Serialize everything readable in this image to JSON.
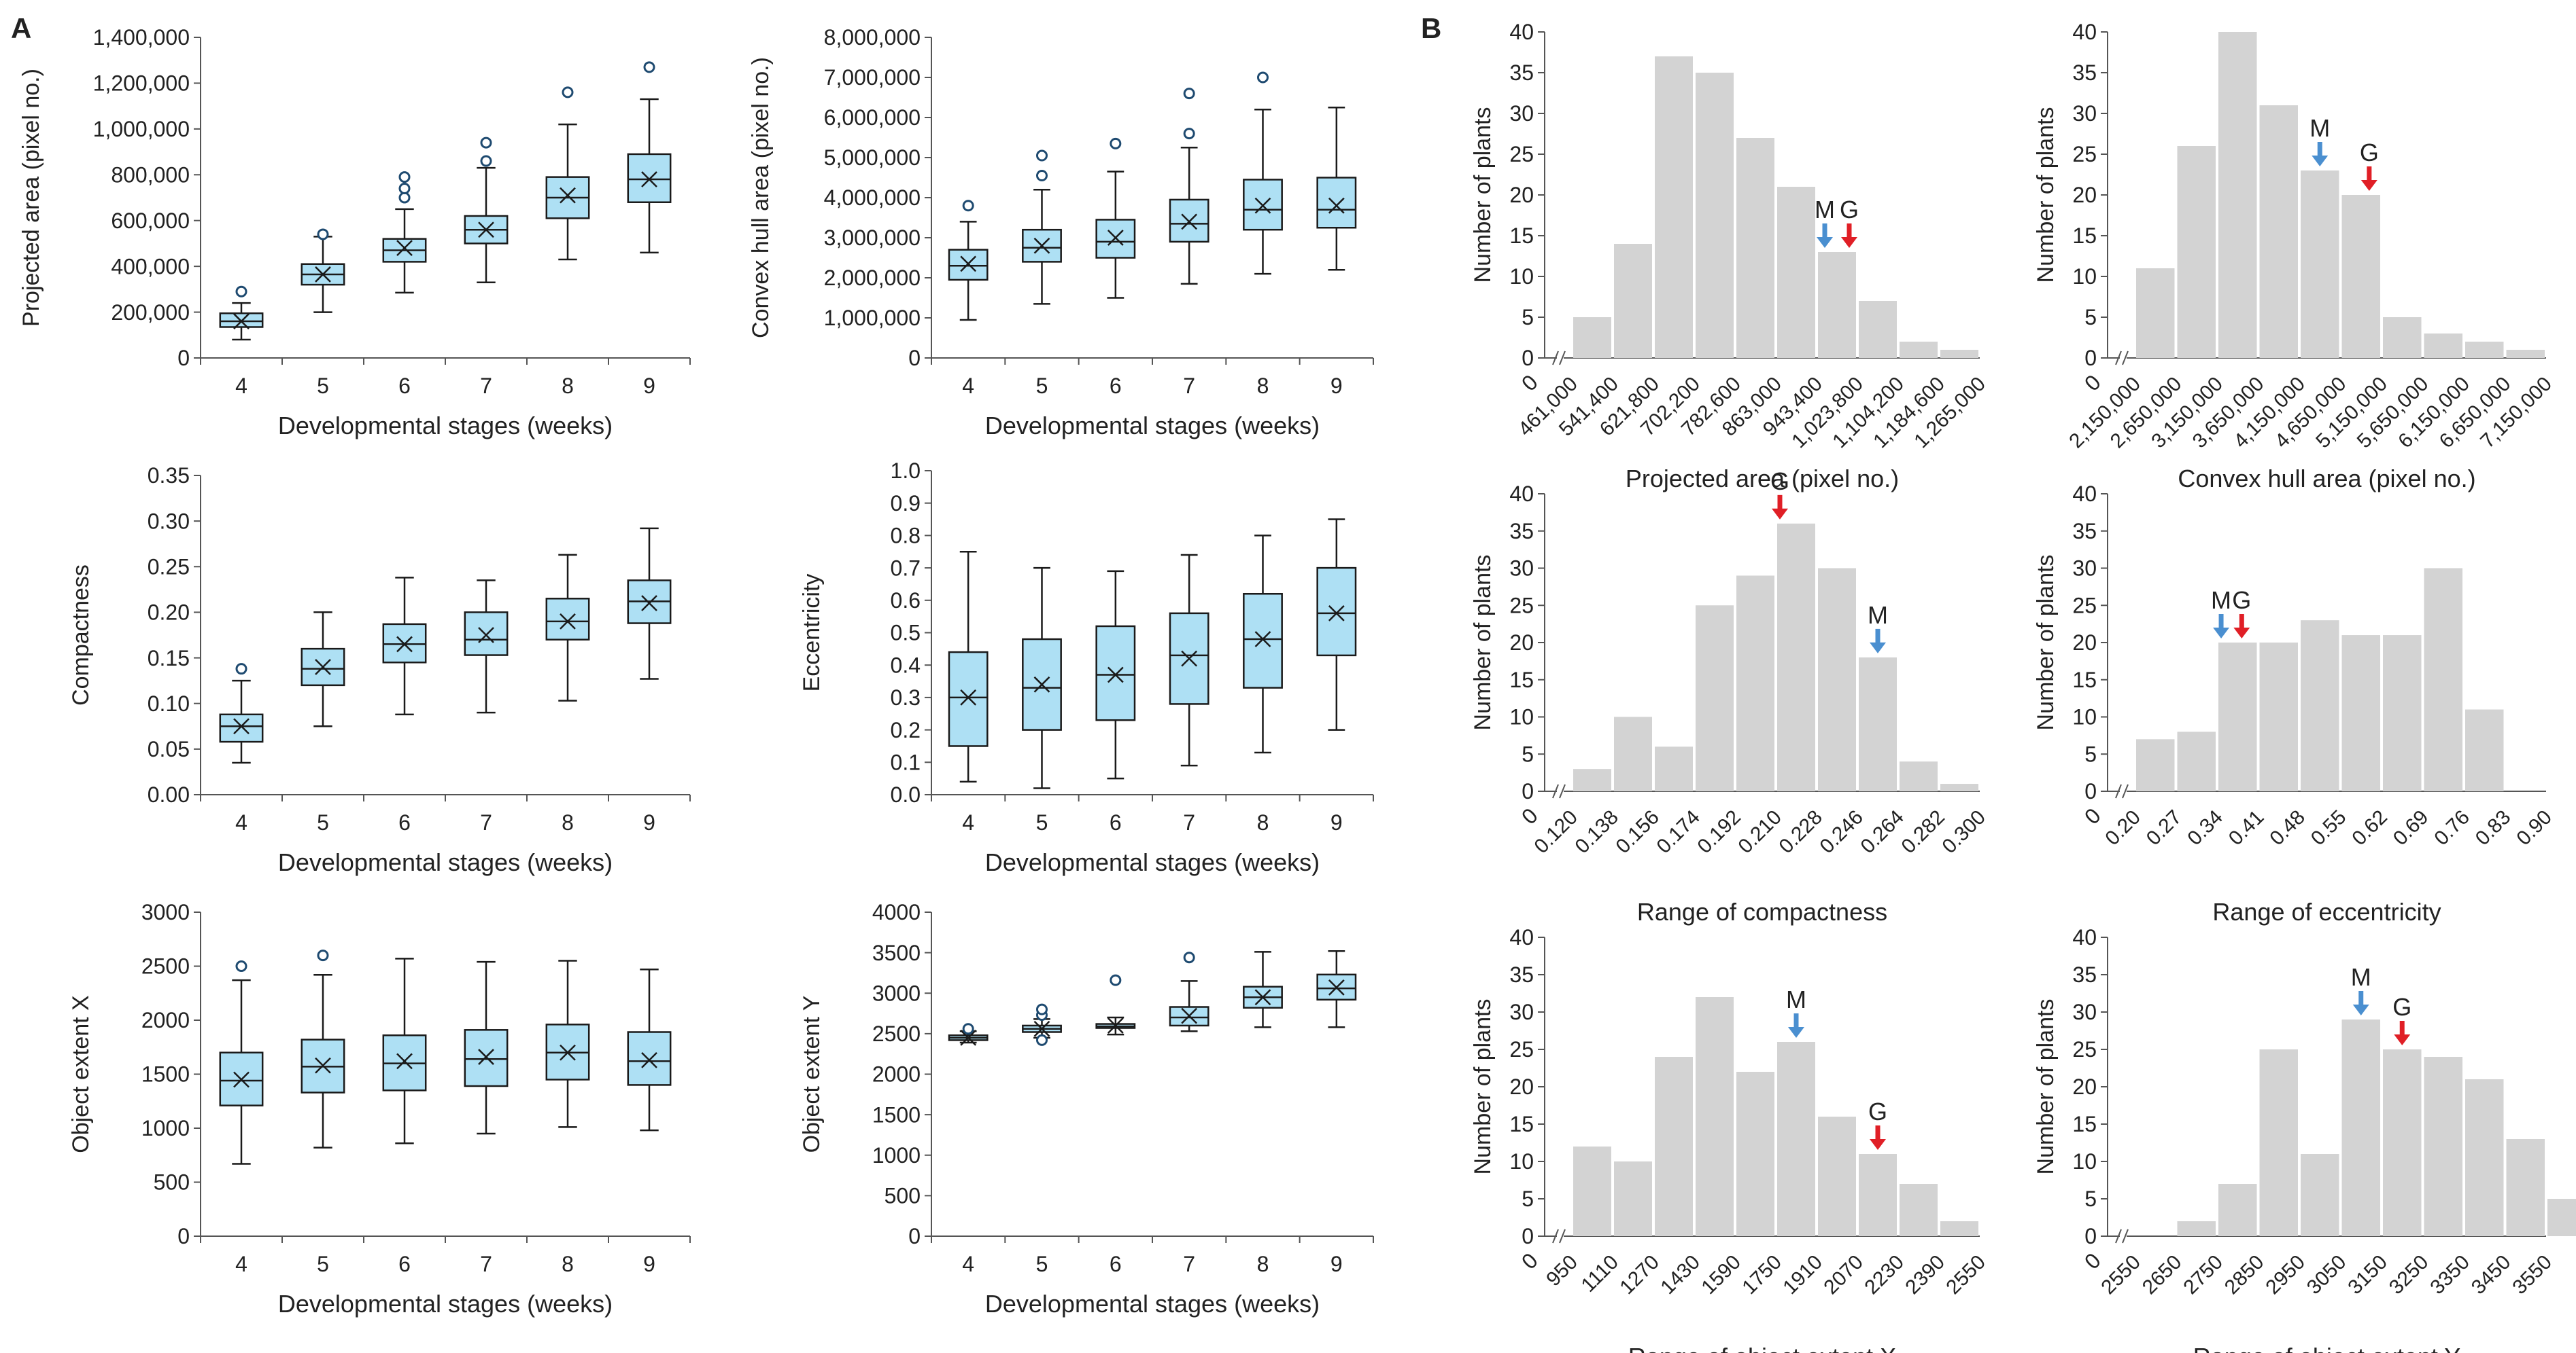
{
  "panel_labels": {
    "a": "A",
    "b": "B"
  },
  "chart_data": [
    {
      "id": "box-projected",
      "type": "box",
      "ylabel": "Projected area (pixel no.)",
      "xlabel": "Developmental stages (weeks)",
      "ylim": [
        0,
        1400000
      ],
      "ystep": 200000,
      "yfmt": "comma",
      "categories": [
        "4",
        "5",
        "6",
        "7",
        "8",
        "9"
      ],
      "boxes": [
        {
          "min": 80000,
          "q1": 135000,
          "median": 160000,
          "q3": 195000,
          "max": 240000,
          "mean": 160000,
          "outliers": [
            290000
          ]
        },
        {
          "min": 200000,
          "q1": 320000,
          "median": 365000,
          "q3": 410000,
          "max": 530000,
          "mean": 365000,
          "outliers": [
            540000
          ]
        },
        {
          "min": 285000,
          "q1": 420000,
          "median": 470000,
          "q3": 520000,
          "max": 650000,
          "mean": 480000,
          "outliers": [
            700000,
            740000,
            790000
          ]
        },
        {
          "min": 330000,
          "q1": 500000,
          "median": 560000,
          "q3": 620000,
          "max": 830000,
          "mean": 560000,
          "outliers": [
            860000,
            940000
          ]
        },
        {
          "min": 430000,
          "q1": 610000,
          "median": 700000,
          "q3": 790000,
          "max": 1020000,
          "mean": 710000,
          "outliers": [
            1160000
          ]
        },
        {
          "min": 460000,
          "q1": 680000,
          "median": 780000,
          "q3": 890000,
          "max": 1130000,
          "mean": 780000,
          "outliers": [
            1270000
          ]
        }
      ]
    },
    {
      "id": "box-convex",
      "type": "box",
      "ylabel": "Convex hull area (pixel no.)",
      "xlabel": "Developmental stages (weeks)",
      "ylim": [
        0,
        8000000
      ],
      "ystep": 1000000,
      "yfmt": "comma",
      "categories": [
        "4",
        "5",
        "6",
        "7",
        "8",
        "9"
      ],
      "boxes": [
        {
          "min": 950000,
          "q1": 1950000,
          "median": 2300000,
          "q3": 2700000,
          "max": 3400000,
          "mean": 2350000,
          "outliers": [
            3800000
          ]
        },
        {
          "min": 1350000,
          "q1": 2400000,
          "median": 2750000,
          "q3": 3200000,
          "max": 4200000,
          "mean": 2800000,
          "outliers": [
            4550000,
            5050000
          ]
        },
        {
          "min": 1500000,
          "q1": 2500000,
          "median": 2900000,
          "q3": 3450000,
          "max": 4650000,
          "mean": 3000000,
          "outliers": [
            5350000
          ]
        },
        {
          "min": 1850000,
          "q1": 2900000,
          "median": 3350000,
          "q3": 3950000,
          "max": 5250000,
          "mean": 3400000,
          "outliers": [
            5600000,
            6600000
          ]
        },
        {
          "min": 2100000,
          "q1": 3200000,
          "median": 3700000,
          "q3": 4450000,
          "max": 6200000,
          "mean": 3800000,
          "outliers": [
            7000000
          ]
        },
        {
          "min": 2200000,
          "q1": 3250000,
          "median": 3700000,
          "q3": 4500000,
          "max": 6250000,
          "mean": 3800000,
          "outliers": []
        }
      ]
    },
    {
      "id": "box-compact",
      "type": "box",
      "ylabel": "Compactness",
      "xlabel": "Developmental stages (weeks)",
      "ylim": [
        0,
        0.35
      ],
      "ystep": 0.05,
      "yfmt": "2",
      "categories": [
        "4",
        "5",
        "6",
        "7",
        "8",
        "9"
      ],
      "boxes": [
        {
          "min": 0.035,
          "q1": 0.058,
          "median": 0.075,
          "q3": 0.088,
          "max": 0.125,
          "mean": 0.075,
          "outliers": [
            0.138
          ]
        },
        {
          "min": 0.075,
          "q1": 0.12,
          "median": 0.138,
          "q3": 0.16,
          "max": 0.2,
          "mean": 0.14,
          "outliers": []
        },
        {
          "min": 0.088,
          "q1": 0.145,
          "median": 0.165,
          "q3": 0.187,
          "max": 0.238,
          "mean": 0.165,
          "outliers": []
        },
        {
          "min": 0.09,
          "q1": 0.153,
          "median": 0.17,
          "q3": 0.2,
          "max": 0.235,
          "mean": 0.175,
          "outliers": []
        },
        {
          "min": 0.103,
          "q1": 0.17,
          "median": 0.19,
          "q3": 0.215,
          "max": 0.263,
          "mean": 0.19,
          "outliers": []
        },
        {
          "min": 0.127,
          "q1": 0.188,
          "median": 0.212,
          "q3": 0.235,
          "max": 0.292,
          "mean": 0.21,
          "outliers": []
        }
      ]
    },
    {
      "id": "box-ecc",
      "type": "box",
      "ylabel": "Eccentricity",
      "xlabel": "Developmental stages (weeks)",
      "ylim": [
        0,
        1.0
      ],
      "ystep": 0.1,
      "yfmt": "1",
      "categories": [
        "4",
        "5",
        "6",
        "7",
        "8",
        "9"
      ],
      "boxes": [
        {
          "min": 0.04,
          "q1": 0.15,
          "median": 0.3,
          "q3": 0.44,
          "max": 0.75,
          "mean": 0.3,
          "outliers": []
        },
        {
          "min": 0.02,
          "q1": 0.2,
          "median": 0.33,
          "q3": 0.48,
          "max": 0.7,
          "mean": 0.34,
          "outliers": []
        },
        {
          "min": 0.05,
          "q1": 0.23,
          "median": 0.37,
          "q3": 0.52,
          "max": 0.69,
          "mean": 0.37,
          "outliers": []
        },
        {
          "min": 0.09,
          "q1": 0.28,
          "median": 0.43,
          "q3": 0.56,
          "max": 0.74,
          "mean": 0.42,
          "outliers": []
        },
        {
          "min": 0.13,
          "q1": 0.33,
          "median": 0.48,
          "q3": 0.62,
          "max": 0.8,
          "mean": 0.48,
          "outliers": []
        },
        {
          "min": 0.2,
          "q1": 0.43,
          "median": 0.56,
          "q3": 0.7,
          "max": 0.85,
          "mean": 0.56,
          "outliers": []
        }
      ]
    },
    {
      "id": "box-extx",
      "type": "box",
      "ylabel": "Object extent X",
      "xlabel": "Developmental stages (weeks)",
      "ylim": [
        0,
        3000
      ],
      "ystep": 500,
      "yfmt": "0",
      "categories": [
        "4",
        "5",
        "6",
        "7",
        "8",
        "9"
      ],
      "boxes": [
        {
          "min": 670,
          "q1": 1210,
          "median": 1440,
          "q3": 1700,
          "max": 2370,
          "mean": 1450,
          "outliers": [
            2500
          ]
        },
        {
          "min": 820,
          "q1": 1330,
          "median": 1570,
          "q3": 1820,
          "max": 2420,
          "mean": 1580,
          "outliers": [
            2600
          ]
        },
        {
          "min": 860,
          "q1": 1350,
          "median": 1600,
          "q3": 1860,
          "max": 2570,
          "mean": 1620,
          "outliers": []
        },
        {
          "min": 950,
          "q1": 1390,
          "median": 1640,
          "q3": 1910,
          "max": 2540,
          "mean": 1660,
          "outliers": []
        },
        {
          "min": 1010,
          "q1": 1450,
          "median": 1700,
          "q3": 1960,
          "max": 2550,
          "mean": 1700,
          "outliers": []
        },
        {
          "min": 980,
          "q1": 1400,
          "median": 1620,
          "q3": 1890,
          "max": 2470,
          "mean": 1630,
          "outliers": []
        }
      ]
    },
    {
      "id": "box-exty",
      "type": "box",
      "ylabel": "Object extent Y",
      "xlabel": "Developmental stages (weeks)",
      "ylim": [
        0,
        4000
      ],
      "ystep": 500,
      "yfmt": "0",
      "categories": [
        "4",
        "5",
        "6",
        "7",
        "8",
        "9"
      ],
      "boxes": [
        {
          "min": 2390,
          "q1": 2420,
          "median": 2450,
          "q3": 2480,
          "max": 2530,
          "mean": 2450,
          "outliers": [
            2560
          ]
        },
        {
          "min": 2450,
          "q1": 2520,
          "median": 2560,
          "q3": 2600,
          "max": 2680,
          "mean": 2560,
          "outliers": [
            2420,
            2730,
            2800
          ]
        },
        {
          "min": 2490,
          "q1": 2570,
          "median": 2590,
          "q3": 2620,
          "max": 2700,
          "mean": 2600,
          "outliers": [
            3160
          ]
        },
        {
          "min": 2530,
          "q1": 2600,
          "median": 2700,
          "q3": 2830,
          "max": 3150,
          "mean": 2720,
          "outliers": [
            3440
          ]
        },
        {
          "min": 2580,
          "q1": 2820,
          "median": 2950,
          "q3": 3080,
          "max": 3510,
          "mean": 2950,
          "outliers": []
        },
        {
          "min": 2580,
          "q1": 2920,
          "median": 3060,
          "q3": 3230,
          "max": 3520,
          "mean": 3070,
          "outliers": []
        }
      ]
    },
    {
      "id": "hist-projected",
      "type": "bar",
      "ylabel": "Number of plants",
      "xlabel": "Projected area (pixel no.)",
      "ylim": [
        0,
        40
      ],
      "ystep": 5,
      "tick_labels": [
        "461,000",
        "541,400",
        "621,800",
        "702,200",
        "782,600",
        "863,000",
        "943,400",
        "1,023,800",
        "1,104,200",
        "1,184,600",
        "1,265,000"
      ],
      "values": [
        5,
        14,
        37,
        35,
        27,
        21,
        13,
        7,
        2,
        1
      ],
      "markers": [
        {
          "label": "M",
          "bin": 6.2,
          "value": 13,
          "color": "#4a8fd0"
        },
        {
          "label": "G",
          "bin": 6.8,
          "value": 13,
          "color": "#e01f26"
        }
      ]
    },
    {
      "id": "hist-convex",
      "type": "bar",
      "ylabel": "Number of plants",
      "xlabel": "Convex hull area (pixel no.)",
      "ylim": [
        0,
        40
      ],
      "ystep": 5,
      "tick_labels": [
        "2,150,000",
        "2,650,000",
        "3,150,000",
        "3,650,000",
        "4,150,000",
        "4,650,000",
        "5,150,000",
        "5,650,000",
        "6,150,000",
        "6,650,000",
        "7,150,000"
      ],
      "values": [
        11,
        26,
        40,
        31,
        23,
        20,
        5,
        3,
        2,
        1
      ],
      "markers": [
        {
          "label": "M",
          "bin": 4.5,
          "value": 23,
          "color": "#4a8fd0"
        },
        {
          "label": "G",
          "bin": 5.7,
          "value": 20,
          "color": "#e01f26"
        }
      ]
    },
    {
      "id": "hist-compact",
      "type": "bar",
      "ylabel": "Number of plants",
      "xlabel": "Range of compactness",
      "ylim": [
        0,
        40
      ],
      "ystep": 5,
      "tick_labels": [
        "0.120",
        "0.138",
        "0.156",
        "0.174",
        "0.192",
        "0.210",
        "0.228",
        "0.246",
        "0.264",
        "0.282",
        "0.300"
      ],
      "values": [
        3,
        10,
        6,
        25,
        29,
        36,
        30,
        18,
        4,
        1
      ],
      "markers": [
        {
          "label": "G",
          "bin": 5.1,
          "value": 36,
          "color": "#e01f26"
        },
        {
          "label": "M",
          "bin": 7.5,
          "value": 18,
          "color": "#4a8fd0"
        }
      ]
    },
    {
      "id": "hist-ecc",
      "type": "bar",
      "ylabel": "Number of plants",
      "xlabel": "Range of eccentricity",
      "ylim": [
        0,
        40
      ],
      "ystep": 5,
      "tick_labels": [
        "0.20",
        "0.27",
        "0.34",
        "0.41",
        "0.48",
        "0.55",
        "0.62",
        "0.69",
        "0.76",
        "0.83",
        "0.90"
      ],
      "values": [
        7,
        8,
        20,
        20,
        23,
        21,
        21,
        30,
        11
      ],
      "markers": [
        {
          "label": "M",
          "bin": 2.1,
          "value": 20,
          "color": "#4a8fd0"
        },
        {
          "label": "G",
          "bin": 2.6,
          "value": 20,
          "color": "#e01f26"
        }
      ]
    },
    {
      "id": "hist-extx",
      "type": "bar",
      "ylabel": "Number of plants",
      "xlabel": "Range of object extent X",
      "ylim": [
        0,
        40
      ],
      "ystep": 5,
      "tick_labels": [
        "950",
        "1110",
        "1270",
        "1430",
        "1590",
        "1750",
        "1910",
        "2070",
        "2230",
        "2390",
        "2550"
      ],
      "values": [
        12,
        10,
        24,
        32,
        22,
        26,
        16,
        11,
        7,
        2
      ],
      "markers": [
        {
          "label": "M",
          "bin": 5.5,
          "value": 26,
          "color": "#4a8fd0"
        },
        {
          "label": "G",
          "bin": 7.5,
          "value": 11,
          "color": "#e01f26"
        }
      ]
    },
    {
      "id": "hist-exty",
      "type": "bar",
      "ylabel": "Number of plants",
      "xlabel": "Range of object extent Y",
      "ylim": [
        0,
        40
      ],
      "ystep": 5,
      "tick_labels": [
        "2550",
        "2650",
        "2750",
        "2850",
        "2950",
        "3050",
        "3150",
        "3250",
        "3350",
        "3450",
        "3550"
      ],
      "values": [
        0,
        2,
        7,
        25,
        11,
        29,
        25,
        24,
        21,
        13,
        5
      ],
      "markers": [
        {
          "label": "M",
          "bin": 5.5,
          "value": 29,
          "color": "#4a8fd0"
        },
        {
          "label": "G",
          "bin": 6.5,
          "value": 25,
          "color": "#e01f26"
        }
      ]
    }
  ],
  "colors": {
    "box_fill": "#aee0f4",
    "stroke": "#1a1a1a",
    "bar_fill": "#d3d3d3",
    "axis": "#555555"
  }
}
